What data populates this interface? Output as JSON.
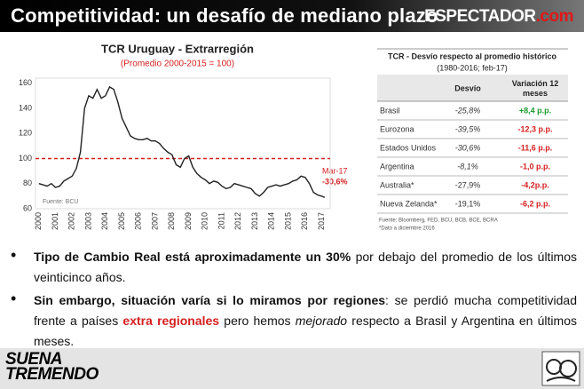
{
  "header": {
    "title": "Competitividad: un desafío de mediano plazo",
    "logo_main": "ESPECTADOR",
    "logo_suffix": ".com"
  },
  "chart_data": {
    "type": "line",
    "title": "TCR Uruguay - Extrarregión",
    "subtitle": "(Promedio 2000-2015 = 100)",
    "source": "Fuente: BCU",
    "color": "#222222",
    "reference_line": 100,
    "reference_color": "#d62020",
    "annotation_label": "Mar-17",
    "annotation_value": "-30,6%",
    "x": [
      2000,
      2000.25,
      2000.5,
      2000.75,
      2001,
      2001.25,
      2001.5,
      2001.75,
      2002,
      2002.25,
      2002.5,
      2002.75,
      2003,
      2003.25,
      2003.5,
      2003.75,
      2004,
      2004.25,
      2004.5,
      2004.75,
      2005,
      2005.25,
      2005.5,
      2005.75,
      2006,
      2006.25,
      2006.5,
      2006.75,
      2007,
      2007.25,
      2007.5,
      2007.75,
      2008,
      2008.25,
      2008.5,
      2008.75,
      2009,
      2009.25,
      2009.5,
      2009.75,
      2010,
      2010.25,
      2010.5,
      2010.75,
      2011,
      2011.25,
      2011.5,
      2011.75,
      2012,
      2012.25,
      2012.5,
      2012.75,
      2013,
      2013.25,
      2013.5,
      2013.75,
      2014,
      2014.25,
      2014.5,
      2014.75,
      2015,
      2015.25,
      2015.5,
      2015.75,
      2016,
      2016.25,
      2016.5,
      2016.75,
      2017,
      2017.17
    ],
    "values": [
      80,
      79,
      78,
      80,
      77,
      78,
      82,
      84,
      86,
      92,
      105,
      140,
      150,
      148,
      155,
      148,
      150,
      157,
      155,
      145,
      132,
      125,
      118,
      116,
      115,
      115,
      116,
      114,
      114,
      112,
      108,
      105,
      103,
      95,
      93,
      100,
      102,
      93,
      88,
      85,
      83,
      80,
      82,
      81,
      78,
      76,
      77,
      80,
      79,
      78,
      77,
      76,
      72,
      70,
      73,
      77,
      78,
      79,
      78,
      79,
      80,
      82,
      83,
      86,
      85,
      80,
      73,
      71,
      70,
      69
    ],
    "xlim": [
      1999.8,
      2017.5
    ],
    "ylim": [
      60,
      164
    ],
    "xticks": [
      2000,
      2001,
      2002,
      2003,
      2004,
      2005,
      2006,
      2007,
      2008,
      2009,
      2010,
      2011,
      2012,
      2013,
      2014,
      2015,
      2016,
      2017
    ],
    "yticks": [
      60,
      80,
      100,
      120,
      140,
      160
    ]
  },
  "table": {
    "title": "TCR - Desvío respecto al promedio histórico",
    "subtitle": "(1980-2016; feb-17)",
    "headers": [
      "Desvío",
      "Variación 12 meses"
    ],
    "rows": [
      [
        "Brasil",
        "-25,8%",
        "+8,4 p.p."
      ],
      [
        "Eurozona",
        "-39,5%",
        "-12,3 p.p."
      ],
      [
        "Estados Unidos",
        "-30,6%",
        "-11,6 p.p."
      ],
      [
        "Argentina",
        "-8,1%",
        "-1,0 p.p."
      ],
      [
        "Australia*",
        "-27,9%",
        "-4,2p.p."
      ],
      [
        "Nueva Zelanda*",
        "-19,1%",
        "-6,2 p.p."
      ]
    ],
    "variation_colors": [
      "#1a9a2a",
      "#d62020",
      "#d62020",
      "#d62020",
      "#d62020",
      "#d62020"
    ],
    "footnotes": [
      "Fuente: Bloomberg, FED, BCU, BCB, BCE, BCRA",
      "*Dato a diciembre 2016"
    ]
  },
  "bullets": [
    [
      {
        "text": "Tipo de Cambio Real está aproximadamente un 30%",
        "style": "bold"
      },
      {
        "text": " por debajo del promedio de los últimos veinticinco años.",
        "style": "normal"
      }
    ],
    [
      {
        "text": "Sin embargo, situación varía si lo miramos por regiones",
        "style": "bold"
      },
      {
        "text": ": se perdió mucha competitividad frente a países ",
        "style": "normal"
      },
      {
        "text": "extra regionales",
        "style": "red"
      },
      {
        "text": " pero hemos ",
        "style": "normal"
      },
      {
        "text": "mejorado",
        "style": "italic"
      },
      {
        "text": " respecto a Brasil y Argentina en últimos meses.",
        "style": "normal"
      }
    ]
  ],
  "footer": {
    "logo_line1": "SUENA",
    "logo_line2": "TREMENDO"
  }
}
